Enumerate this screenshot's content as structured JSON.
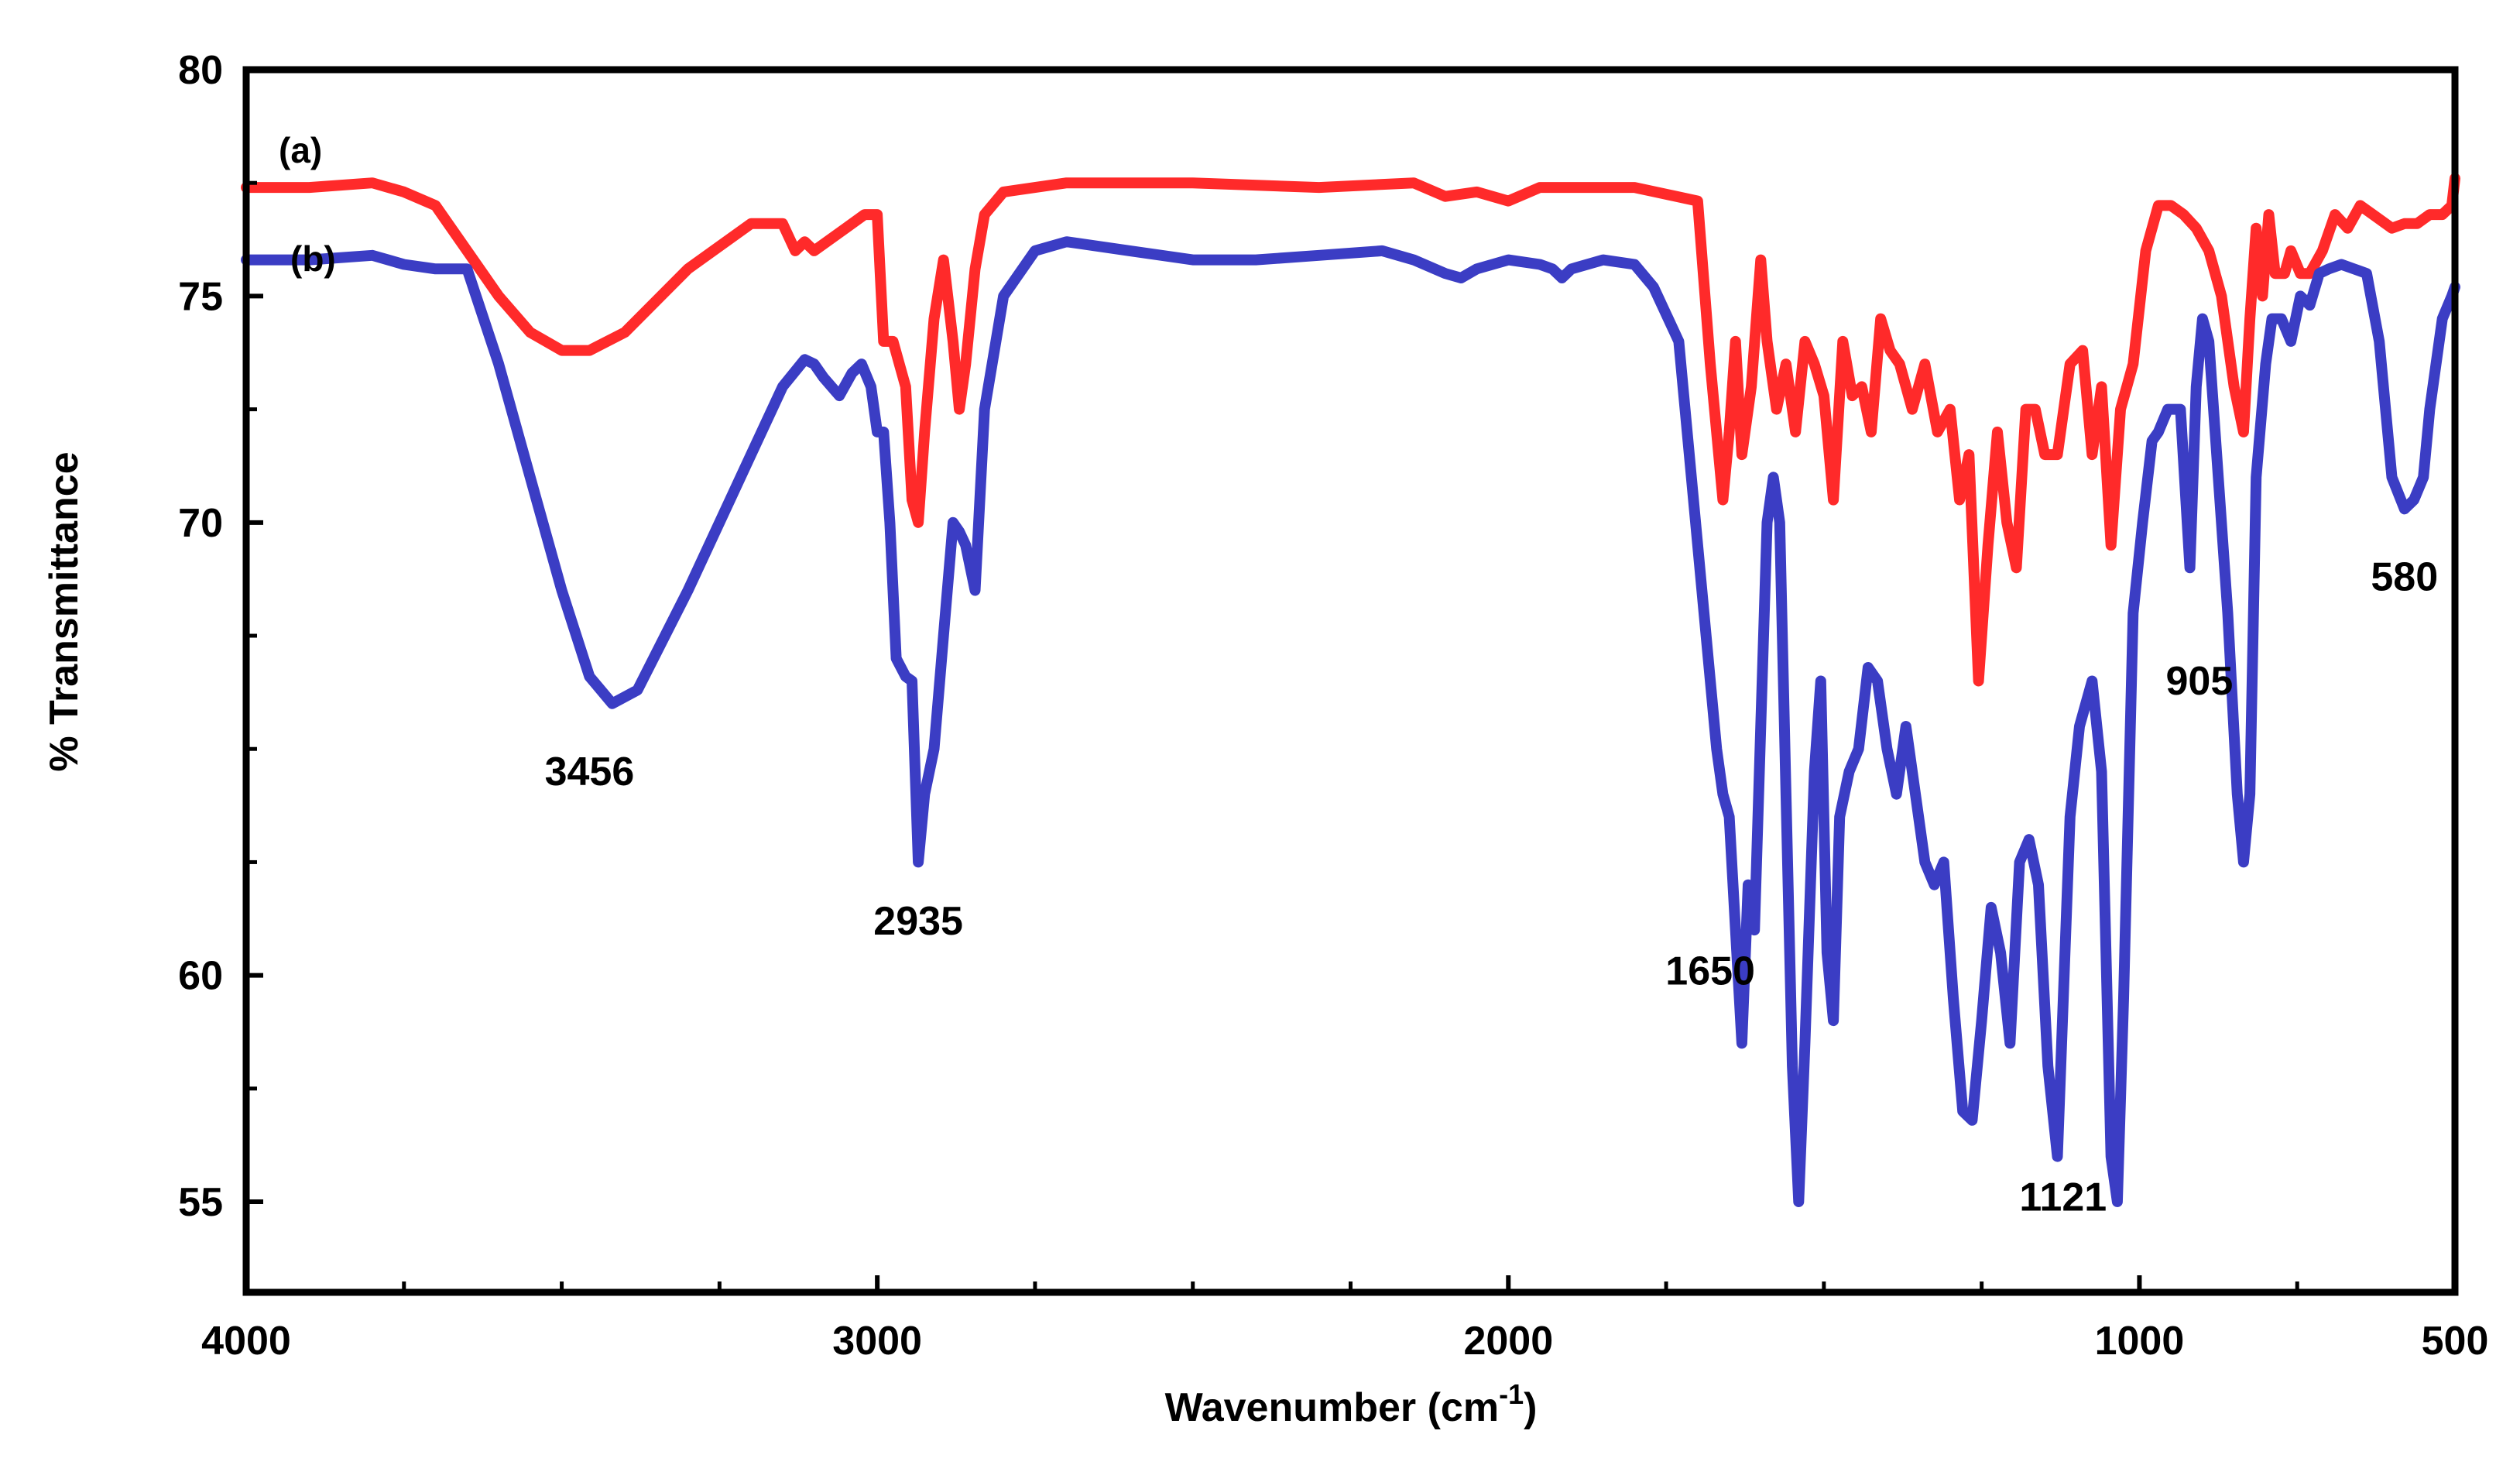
{
  "chart_data": {
    "type": "line",
    "title": "",
    "xlabel": "Wavenumber (cm",
    "xlabel_sup": "-1",
    "xlabel_end": ")",
    "ylabel": "% Transmittance",
    "xlim": [
      4000,
      500
    ],
    "ylim": [
      53,
      80
    ],
    "x_major_ticks": [
      4000,
      3000,
      2000,
      1000,
      500
    ],
    "x_major_tick_labels": [
      "4000",
      "3000",
      "2000",
      "1000",
      "500"
    ],
    "x_minor_ticks": [
      3750,
      3500,
      3250,
      2750,
      2500,
      2250,
      1750,
      1500,
      1250,
      750
    ],
    "y_major_ticks": [
      80,
      75,
      70,
      60,
      55
    ],
    "y_major_tick_labels": [
      "80",
      "75",
      "70",
      "60",
      "55"
    ],
    "y_minor_ticks": [
      77.5,
      72.5,
      67.5,
      65,
      62.5,
      57.5
    ],
    "grid": false,
    "series": [
      {
        "name": "(a)",
        "color": "#ff2a2a",
        "x": [
          4000,
          3900,
          3800,
          3750,
          3700,
          3650,
          3600,
          3550,
          3500,
          3456,
          3400,
          3300,
          3200,
          3150,
          3130,
          3115,
          3100,
          3050,
          3020,
          3000,
          2990,
          2975,
          2955,
          2945,
          2935,
          2925,
          2910,
          2895,
          2880,
          2870,
          2860,
          2845,
          2830,
          2800,
          2700,
          2500,
          2300,
          2150,
          2100,
          2050,
          2000,
          1950,
          1900,
          1800,
          1700,
          1680,
          1660,
          1650,
          1640,
          1630,
          1615,
          1600,
          1590,
          1575,
          1560,
          1545,
          1530,
          1515,
          1500,
          1485,
          1470,
          1455,
          1440,
          1425,
          1410,
          1395,
          1380,
          1360,
          1340,
          1320,
          1300,
          1285,
          1270,
          1255,
          1240,
          1225,
          1210,
          1195,
          1180,
          1165,
          1150,
          1130,
          1110,
          1090,
          1075,
          1060,
          1045,
          1030,
          1010,
          990,
          970,
          950,
          930,
          910,
          890,
          870,
          850,
          835,
          825,
          815,
          805,
          795,
          785,
          770,
          760,
          745,
          730,
          710,
          690,
          670,
          650,
          630,
          600,
          580,
          560,
          540,
          520,
          505,
          500
        ],
        "y": [
          77.4,
          77.4,
          77.5,
          77.3,
          77.0,
          76.0,
          75.0,
          74.2,
          73.8,
          73.8,
          74.2,
          75.6,
          76.6,
          76.6,
          76.0,
          76.2,
          76.0,
          76.5,
          76.8,
          76.8,
          74.0,
          74.0,
          73.0,
          70.5,
          70.0,
          72.0,
          74.5,
          75.8,
          74.0,
          72.5,
          73.5,
          75.6,
          76.8,
          77.3,
          77.5,
          77.5,
          77.4,
          77.5,
          77.2,
          77.3,
          77.1,
          77.4,
          77.4,
          77.4,
          77.1,
          73.5,
          70.5,
          72.0,
          74.0,
          71.5,
          73.0,
          75.8,
          74.0,
          72.5,
          73.5,
          72.0,
          74.0,
          73.5,
          72.8,
          70.5,
          74.0,
          72.8,
          73.0,
          72.0,
          74.5,
          73.8,
          73.5,
          72.5,
          73.5,
          72.0,
          72.5,
          70.5,
          71.5,
          66.5,
          69.5,
          72.0,
          70.0,
          69.0,
          72.5,
          72.5,
          71.5,
          71.5,
          73.5,
          73.8,
          71.5,
          73.0,
          69.5,
          72.5,
          73.5,
          76.0,
          77.0,
          77.0,
          76.8,
          76.5,
          76.0,
          75.0,
          73.0,
          72.0,
          74.5,
          76.5,
          75.0,
          76.8,
          75.5,
          75.5,
          76.0,
          75.5,
          75.5,
          76.0,
          76.8,
          76.5,
          77.0,
          76.8,
          76.5,
          76.6,
          76.6,
          76.8,
          76.8,
          77.0,
          77.6
        ],
        "label_text": "(a)"
      },
      {
        "name": "(b)",
        "color": "#3b3dc4",
        "x": [
          4000,
          3900,
          3800,
          3750,
          3700,
          3650,
          3600,
          3550,
          3500,
          3456,
          3420,
          3380,
          3300,
          3200,
          3150,
          3115,
          3100,
          3085,
          3060,
          3040,
          3025,
          3010,
          3000,
          2990,
          2980,
          2970,
          2955,
          2945,
          2935,
          2925,
          2910,
          2895,
          2880,
          2870,
          2860,
          2845,
          2830,
          2800,
          2750,
          2700,
          2600,
          2500,
          2400,
          2300,
          2200,
          2150,
          2100,
          2075,
          2050,
          2000,
          1950,
          1930,
          1915,
          1900,
          1850,
          1800,
          1770,
          1730,
          1710,
          1690,
          1670,
          1660,
          1650,
          1640,
          1630,
          1620,
          1610,
          1600,
          1590,
          1580,
          1570,
          1560,
          1550,
          1540,
          1530,
          1515,
          1505,
          1495,
          1485,
          1475,
          1460,
          1445,
          1430,
          1415,
          1400,
          1385,
          1370,
          1355,
          1340,
          1325,
          1310,
          1295,
          1280,
          1265,
          1250,
          1235,
          1220,
          1205,
          1190,
          1175,
          1160,
          1145,
          1130,
          1110,
          1095,
          1075,
          1060,
          1045,
          1035,
          1025,
          1010,
          995,
          980,
          970,
          955,
          945,
          935,
          920,
          910,
          900,
          890,
          880,
          860,
          845,
          835,
          825,
          815,
          800,
          790,
          775,
          760,
          745,
          730,
          715,
          700,
          680,
          660,
          640,
          620,
          600,
          580,
          565,
          550,
          540,
          520,
          505,
          500
        ],
        "y": [
          75.8,
          75.8,
          75.9,
          75.7,
          75.6,
          75.6,
          73.5,
          71.0,
          68.5,
          66.6,
          66.0,
          66.3,
          68.5,
          71.5,
          73.0,
          73.6,
          73.5,
          73.2,
          72.8,
          73.3,
          73.5,
          73.0,
          72.0,
          72.0,
          70.0,
          67.0,
          66.6,
          66.5,
          62.5,
          64.0,
          65.0,
          67.5,
          70.0,
          69.8,
          69.5,
          68.5,
          72.5,
          75.0,
          76.0,
          76.2,
          76.0,
          75.8,
          75.8,
          75.9,
          76.0,
          75.8,
          75.5,
          75.4,
          75.6,
          75.8,
          75.7,
          75.6,
          75.4,
          75.6,
          75.8,
          75.7,
          75.2,
          74.0,
          71.0,
          68.0,
          65.0,
          64.0,
          63.5,
          61.0,
          58.5,
          62.0,
          61.0,
          65.5,
          70.0,
          71.0,
          70.0,
          64.0,
          58.0,
          55.0,
          58.5,
          64.5,
          66.5,
          60.5,
          59.0,
          63.5,
          64.5,
          65.0,
          66.8,
          66.5,
          65.0,
          64.0,
          65.5,
          64.0,
          62.5,
          62.0,
          62.5,
          59.5,
          57.0,
          56.8,
          59.0,
          61.5,
          60.5,
          58.5,
          62.5,
          63.0,
          62.0,
          58.0,
          56.0,
          63.5,
          65.5,
          66.5,
          64.5,
          56.0,
          55.0,
          59.5,
          68.0,
          70.0,
          71.8,
          72.0,
          72.5,
          72.5,
          72.5,
          69.0,
          73.0,
          74.5,
          74.0,
          72.0,
          68.0,
          64.0,
          62.5,
          64.0,
          71.0,
          73.5,
          74.5,
          74.5,
          74.0,
          75.0,
          74.8,
          75.5,
          75.6,
          75.7,
          75.6,
          75.5,
          74.0,
          71.0,
          70.3,
          70.5,
          71.0,
          72.5,
          74.5,
          75.0,
          75.2
        ],
        "label_text": "(b)"
      }
    ],
    "annotations": [
      {
        "text": "3456",
        "x": 3456,
        "y": 64.2
      },
      {
        "text": "2935",
        "x": 2935,
        "y": 60.9
      },
      {
        "text": "1650",
        "x": 1680,
        "y": 59.8
      },
      {
        "text": "1121",
        "x": 1121,
        "y": 54.8
      },
      {
        "text": "905",
        "x": 905,
        "y": 66.2
      },
      {
        "text": "580",
        "x": 580,
        "y": 68.5
      }
    ]
  }
}
